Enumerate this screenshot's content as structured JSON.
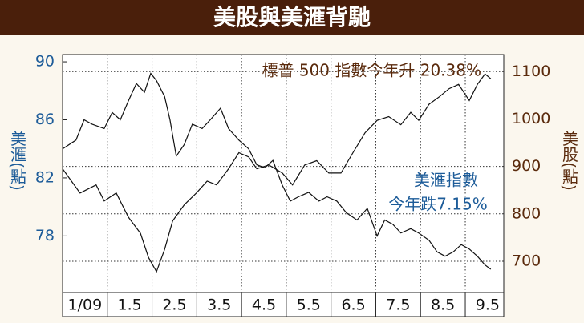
{
  "chart_data": {
    "type": "line",
    "title": "美股與美滙背馳",
    "ylabel": "美滙(點)",
    "y2label": "美股(點)",
    "xlim": [
      0,
      9.86
    ],
    "xticks": [
      {
        "value": 0.5,
        "label": "1/09"
      },
      1.5,
      2.5,
      3.5,
      4.5,
      5.5,
      6.5,
      7.5,
      8.5,
      9.5
    ],
    "xgrid": [
      1,
      2,
      3,
      4,
      5,
      6,
      7,
      8,
      9
    ],
    "ylim": [
      74.1,
      90.5
    ],
    "yticks": [
      90,
      86,
      82,
      78
    ],
    "y2lim": [
      634,
      1136
    ],
    "y2ticks": [
      1100,
      1000,
      900,
      800,
      700
    ],
    "grid": true,
    "annotations": {
      "stock": "標普 500 指數今年升 20.38%",
      "dollar": [
        "美滙指數",
        "今年跌7.15%"
      ]
    },
    "series": [
      {
        "name": "美滙指數",
        "color": "#111111",
        "x": [
          0,
          0.3,
          0.48,
          0.66,
          0.93,
          1.11,
          1.29,
          1.47,
          1.65,
          1.83,
          1.97,
          2.1,
          2.28,
          2.4,
          2.54,
          2.72,
          2.9,
          3.12,
          3.3,
          3.53,
          3.71,
          3.94,
          4.16,
          4.34,
          4.52,
          4.7,
          4.91,
          5.09,
          5.27,
          5.5,
          5.73,
          5.91,
          6.13,
          6.34,
          6.58,
          6.81,
          7.03,
          7.2,
          7.38,
          7.56,
          7.78,
          7.96,
          8.19,
          8.37,
          8.55,
          8.73,
          8.91,
          9.09,
          9.27,
          9.44,
          9.57
        ],
        "values": [
          84.0,
          84.6,
          86.0,
          85.7,
          85.4,
          86.5,
          86.0,
          87.3,
          88.5,
          87.9,
          89.2,
          88.7,
          87.6,
          86.0,
          83.5,
          84.3,
          85.7,
          85.4,
          86.0,
          86.8,
          85.4,
          84.6,
          84.0,
          82.9,
          82.7,
          83.2,
          81.5,
          80.4,
          80.7,
          81.0,
          80.4,
          80.7,
          80.4,
          79.6,
          79.1,
          79.9,
          78.0,
          79.1,
          78.8,
          78.2,
          78.5,
          78.2,
          77.7,
          76.9,
          76.6,
          76.9,
          77.4,
          77.1,
          76.6,
          76.0,
          75.7
        ]
      },
      {
        "name": "標普 500 指數",
        "color": "#111111",
        "axis": "y2",
        "x": [
          0,
          0.39,
          0.75,
          0.93,
          1.2,
          1.47,
          1.74,
          1.92,
          2.1,
          2.28,
          2.46,
          2.72,
          2.99,
          3.23,
          3.44,
          3.71,
          3.94,
          4.16,
          4.34,
          4.61,
          4.91,
          5.14,
          5.41,
          5.68,
          5.95,
          6.22,
          6.49,
          6.76,
          7.03,
          7.29,
          7.56,
          7.78,
          7.96,
          8.19,
          8.42,
          8.64,
          8.85,
          9.09,
          9.27,
          9.44,
          9.57
        ],
        "values": [
          895,
          844,
          861,
          827,
          844,
          793,
          759,
          708,
          678,
          725,
          785,
          819,
          844,
          869,
          861,
          895,
          929,
          920,
          895,
          903,
          886,
          861,
          903,
          912,
          886,
          886,
          929,
          971,
          997,
          1005,
          988,
          1014,
          997,
          1031,
          1047,
          1064,
          1073,
          1039,
          1073,
          1095,
          1085
        ]
      }
    ]
  }
}
